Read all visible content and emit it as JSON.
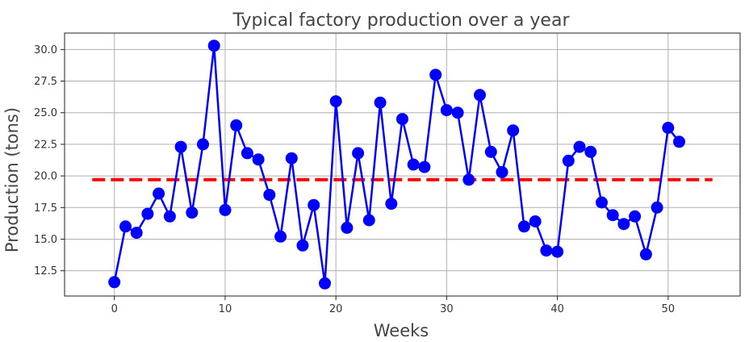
{
  "chart_data": {
    "type": "line",
    "title": "Typical factory production over a year",
    "xlabel": "Weeks",
    "ylabel": "Production (tons)",
    "xlim": [
      -4.5,
      56.5
    ],
    "ylim": [
      10.5,
      31.3
    ],
    "grid": true,
    "x_ticks": [
      0,
      10,
      20,
      30,
      40,
      50
    ],
    "y_ticks": [
      12.5,
      15.0,
      17.5,
      20.0,
      22.5,
      25.0,
      27.5,
      30.0
    ],
    "x_tick_labels": [
      "0",
      "10",
      "20",
      "30",
      "40",
      "50"
    ],
    "y_tick_labels": [
      "12.5",
      "15.0",
      "17.5",
      "20.0",
      "22.5",
      "25.0",
      "27.5",
      "30.0"
    ],
    "series": [
      {
        "color": "#0000ff",
        "style": "solid-with-circle-markers",
        "x": [
          0,
          1,
          2,
          3,
          4,
          5,
          6,
          7,
          8,
          9,
          10,
          11,
          12,
          13,
          14,
          15,
          16,
          17,
          18,
          19,
          20,
          21,
          22,
          23,
          24,
          25,
          26,
          27,
          28,
          29,
          30,
          31,
          32,
          33,
          34,
          35,
          36,
          37,
          38,
          39,
          40,
          41,
          42,
          43,
          44,
          45,
          46,
          47,
          48,
          49,
          50,
          51
        ],
        "values": [
          11.6,
          16.0,
          15.5,
          17.0,
          18.6,
          16.8,
          22.3,
          17.1,
          22.5,
          30.3,
          17.3,
          24.0,
          21.8,
          21.3,
          18.5,
          15.2,
          21.4,
          14.5,
          17.7,
          11.5,
          25.9,
          15.9,
          21.8,
          16.5,
          25.8,
          17.8,
          24.5,
          20.9,
          20.7,
          28.0,
          25.2,
          25.0,
          19.7,
          26.4,
          21.9,
          20.3,
          23.6,
          16.0,
          16.4,
          14.1,
          14.0,
          21.2,
          22.3,
          21.9,
          17.9,
          16.9,
          16.2,
          16.8,
          13.8,
          17.5,
          23.8,
          22.7
        ]
      },
      {
        "color": "#ff0000",
        "style": "dashed",
        "x": [
          -2,
          54
        ],
        "values": [
          19.7,
          19.7
        ]
      }
    ]
  }
}
